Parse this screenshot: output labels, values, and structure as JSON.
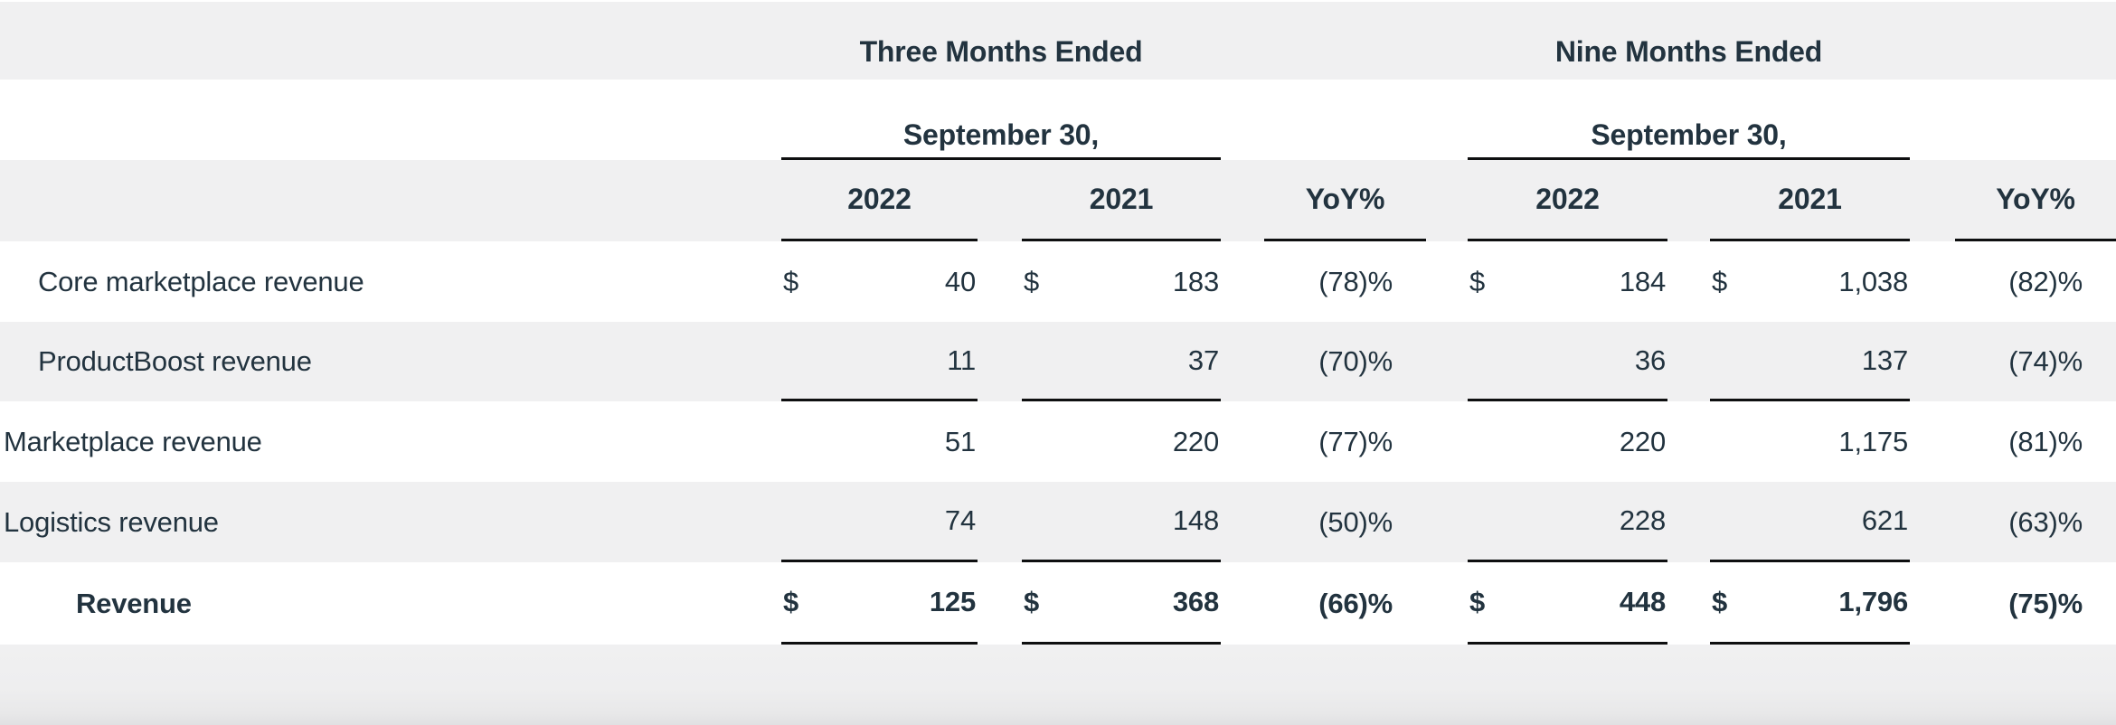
{
  "table": {
    "groups": [
      {
        "title": "Three Months Ended",
        "subtitle": "September 30,"
      },
      {
        "title": "Nine Months Ended",
        "subtitle": "September 30,"
      }
    ],
    "year_headers": {
      "y2022": "2022",
      "y2021": "2021",
      "yoy": "YoY%"
    },
    "rows": [
      {
        "label": "Core marketplace revenue",
        "cells": [
          "$",
          "40",
          "$",
          "183",
          "(78)%",
          "$",
          "184",
          "$",
          "1,038",
          "(82)%"
        ]
      },
      {
        "label": "ProductBoost revenue",
        "cells": [
          "",
          "11",
          "",
          "37",
          "(70)%",
          "",
          "36",
          "",
          "137",
          "(74)%"
        ]
      },
      {
        "label": "Marketplace revenue",
        "cells": [
          "",
          "51",
          "",
          "220",
          "(77)%",
          "",
          "220",
          "",
          "1,175",
          "(81)%"
        ]
      },
      {
        "label": "Logistics revenue",
        "cells": [
          "",
          "74",
          "",
          "148",
          "(50)%",
          "",
          "228",
          "",
          "621",
          "(63)%"
        ]
      },
      {
        "label": "Revenue",
        "cells": [
          "$",
          "125",
          "$",
          "368",
          "(66)%",
          "$",
          "448",
          "$",
          "1,796",
          "(75)%"
        ]
      }
    ],
    "colors": {
      "text": "#22333f",
      "band": "#f0f0f1",
      "rule": "#0e0f10",
      "white": "#ffffff"
    }
  }
}
